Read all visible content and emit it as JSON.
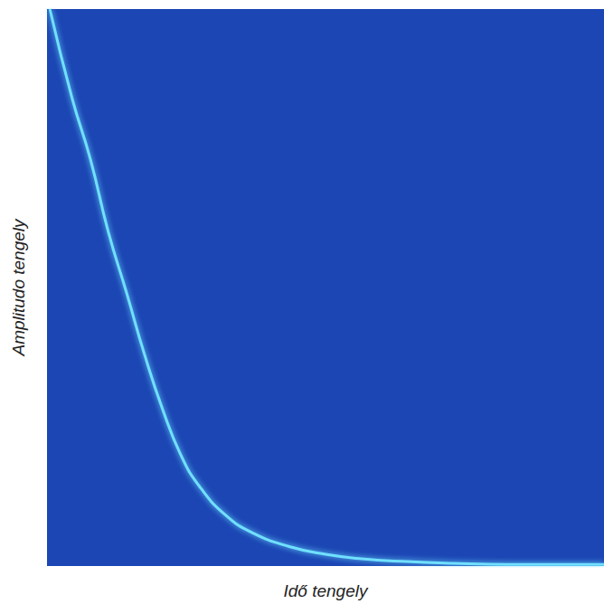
{
  "chart_data": {
    "type": "line",
    "x_label": "Idő tengely",
    "y_label": "Amplitudo tengely",
    "x": [
      0.05,
      0.45,
      0.78,
      1.1,
      1.43,
      1.75,
      2.08,
      2.4,
      2.73,
      3.21,
      3.7,
      4.35,
      5.0,
      5.65,
      6.46,
      7.27,
      8.25,
      9.22,
      10.0
    ],
    "values": [
      1.0,
      0.84,
      0.73,
      0.6,
      0.49,
      0.38,
      0.28,
      0.2,
      0.144,
      0.091,
      0.059,
      0.035,
      0.021,
      0.013,
      0.008,
      0.005,
      0.003,
      0.003,
      0.003
    ],
    "xlim": [
      0,
      10
    ],
    "ylim": [
      0,
      1
    ],
    "color": "#6fe0ff",
    "tick_labels": false,
    "grid": false
  }
}
